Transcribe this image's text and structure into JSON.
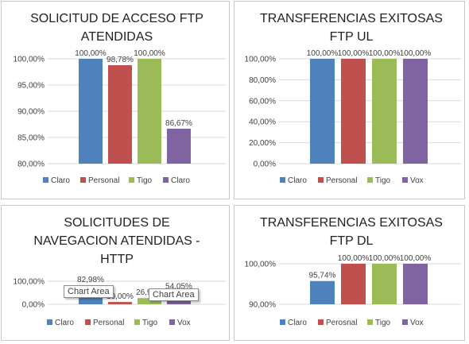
{
  "tooltips": [
    "Chart Area",
    "Chart Area"
  ],
  "chart_data": [
    {
      "type": "bar",
      "title": [
        "SOLICITUD DE ACCESO FTP",
        "ATENDIDAS"
      ],
      "categories": [
        "Claro",
        "Personal",
        "Tigo",
        "Claro"
      ],
      "values": [
        100.0,
        98.78,
        100.0,
        86.67
      ],
      "data_labels": [
        "100,00%",
        "98,78%",
        "100,00%",
        "86,67%"
      ],
      "colors": [
        "#4f81bd",
        "#c0504d",
        "#9bbb59",
        "#8064a2"
      ],
      "ylim": [
        80,
        100
      ],
      "yticks": [
        80,
        85,
        90,
        95,
        100
      ],
      "ytick_labels": [
        "80,00%",
        "85,00%",
        "90,00%",
        "95,00%",
        "100,00%"
      ],
      "legend_position": "bottom",
      "grid": true
    },
    {
      "type": "bar",
      "title": [
        "TRANSFERENCIAS EXITOSAS",
        "FTP UL"
      ],
      "categories": [
        "Claro",
        "Personal",
        "Tigo",
        "Vox"
      ],
      "values": [
        100.0,
        100.0,
        100.0,
        100.0
      ],
      "data_labels": [
        "100,00%",
        "100,00%",
        "100,00%",
        "100,00%"
      ],
      "colors": [
        "#4f81bd",
        "#c0504d",
        "#9bbb59",
        "#8064a2"
      ],
      "ylim": [
        0,
        100
      ],
      "yticks": [
        0,
        20,
        40,
        60,
        80,
        100
      ],
      "ytick_labels": [
        "0,00%",
        "20,00%",
        "40,00%",
        "60,00%",
        "80,00%",
        "100,00%"
      ],
      "legend_position": "bottom",
      "grid": true
    },
    {
      "type": "bar",
      "title": [
        "SOLICITUDES DE",
        "NAVEGACION ATENDIDAS -",
        "HTTP"
      ],
      "categories": [
        "Claro",
        "Personal",
        "Tigo",
        "Vox"
      ],
      "values": [
        82.98,
        10.0,
        26.92,
        54.05
      ],
      "data_labels": [
        "82,98%",
        "10,00%",
        "26,92%",
        "54,05%"
      ],
      "colors": [
        "#4f81bd",
        "#c0504d",
        "#9bbb59",
        "#8064a2"
      ],
      "ylim": [
        0,
        100
      ],
      "yticks": [
        0,
        100
      ],
      "ytick_labels": [
        "0,00%",
        "100,00%"
      ],
      "legend_position": "bottom",
      "grid": true
    },
    {
      "type": "bar",
      "title": [
        "TRANSFERENCIAS EXITOSAS",
        "FTP DL"
      ],
      "categories": [
        "Claro",
        "Perosnal",
        "Tigo",
        "Vox"
      ],
      "values": [
        95.74,
        100.0,
        100.0,
        100.0
      ],
      "data_labels": [
        "95,74%",
        "100,00%",
        "100,00%",
        "100,00%"
      ],
      "colors": [
        "#4f81bd",
        "#c0504d",
        "#9bbb59",
        "#8064a2"
      ],
      "ylim": [
        90,
        100
      ],
      "yticks": [
        90,
        100
      ],
      "ytick_labels": [
        "90,00%",
        "100,00%"
      ],
      "legend_position": "bottom",
      "grid": true
    }
  ]
}
